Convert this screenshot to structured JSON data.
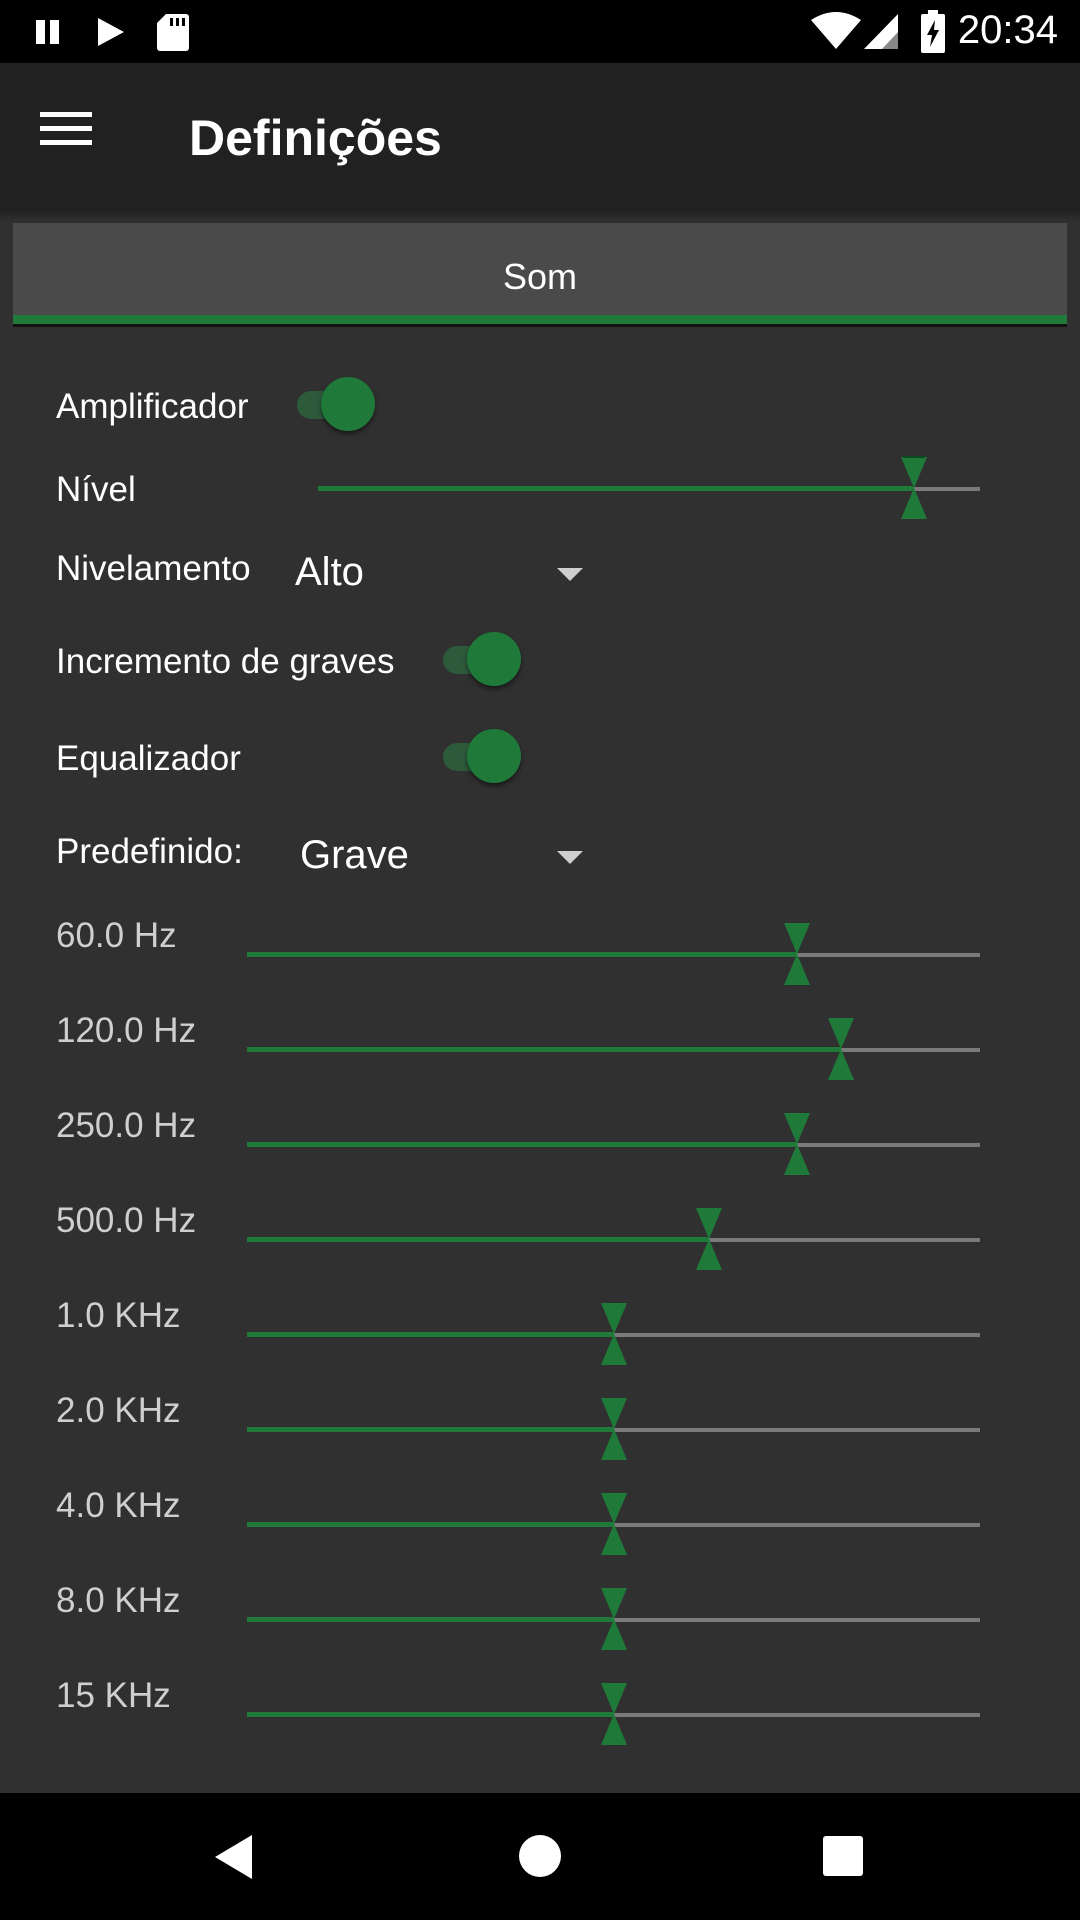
{
  "status_bar": {
    "time": "20:34",
    "left_icons": [
      "pause-icon",
      "play-icon",
      "sd-card-icon"
    ],
    "right_icons": [
      "wifi-icon",
      "signal-icon",
      "battery-charging-icon"
    ]
  },
  "app_bar": {
    "menu_icon": "menu-icon",
    "title": "Definições"
  },
  "tabs": [
    {
      "label": "Som",
      "selected": true
    }
  ],
  "accent_color": "#1f7a3a",
  "settings": {
    "amplifier": {
      "label": "Amplificador",
      "enabled": true
    },
    "level": {
      "label": "Nível",
      "value_fraction": 0.9
    },
    "leveling": {
      "label": "Nivelamento",
      "value": "Alto"
    },
    "bass_boost": {
      "label": "Incremento de graves",
      "enabled": true
    },
    "equalizer": {
      "label": "Equalizador",
      "enabled": true
    },
    "preset": {
      "label": "Predefinido:",
      "value": "Grave"
    }
  },
  "eq_bands": [
    {
      "label": "60.0 Hz",
      "fraction": 0.75
    },
    {
      "label": "120.0 Hz",
      "fraction": 0.81
    },
    {
      "label": "250.0 Hz",
      "fraction": 0.75
    },
    {
      "label": "500.0 Hz",
      "fraction": 0.63
    },
    {
      "label": "1.0 KHz",
      "fraction": 0.5
    },
    {
      "label": "2.0 KHz",
      "fraction": 0.5
    },
    {
      "label": "4.0 KHz",
      "fraction": 0.5
    },
    {
      "label": "8.0 KHz",
      "fraction": 0.5
    },
    {
      "label": "15 KHz",
      "fraction": 0.5
    }
  ],
  "nav_bar": {
    "icons": [
      "back-icon",
      "home-icon",
      "recents-icon"
    ]
  }
}
